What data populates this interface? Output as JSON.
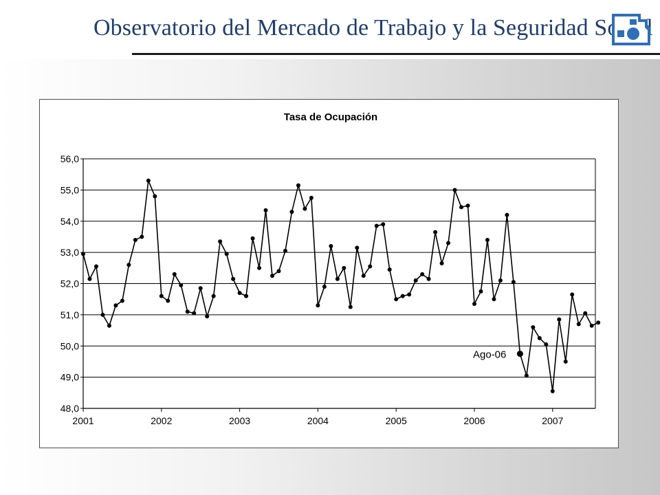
{
  "header": {
    "title": "Observatorio del Mercado de Trabajo y la Seguridad Social",
    "logo_icon": "gear-icon",
    "title_color": "#1f3e6e"
  },
  "chart_data": {
    "type": "line",
    "title": "Tasa de Ocupación",
    "xlabel": "",
    "ylabel": "",
    "ylim": [
      48.0,
      56.0
    ],
    "y_ticks": [
      "48,0",
      "49,0",
      "50,0",
      "51,0",
      "52,0",
      "53,0",
      "54,0",
      "55,0",
      "56,0"
    ],
    "x_ticks": [
      "2001",
      "2002",
      "2003",
      "2004",
      "2005",
      "2006",
      "2007"
    ],
    "grid": "horizontal",
    "legend": "none",
    "annotation": {
      "label": "Ago-06",
      "x": "2006-08"
    },
    "line_color": "#000000",
    "series": [
      {
        "x": [
          "2001-01",
          "2001-02",
          "2001-03",
          "2001-04",
          "2001-05",
          "2001-06",
          "2001-07",
          "2001-08",
          "2001-09",
          "2001-10",
          "2001-11",
          "2001-12",
          "2002-01",
          "2002-02",
          "2002-03",
          "2002-04",
          "2002-05",
          "2002-06",
          "2002-07",
          "2002-08",
          "2002-09",
          "2002-10",
          "2002-11",
          "2002-12",
          "2003-01",
          "2003-02",
          "2003-03",
          "2003-04",
          "2003-05",
          "2003-06",
          "2003-07",
          "2003-08",
          "2003-09",
          "2003-10",
          "2003-11",
          "2003-12",
          "2004-01",
          "2004-02",
          "2004-03",
          "2004-04",
          "2004-05",
          "2004-06",
          "2004-07",
          "2004-08",
          "2004-09",
          "2004-10",
          "2004-11",
          "2004-12",
          "2005-01",
          "2005-02",
          "2005-03",
          "2005-04",
          "2005-05",
          "2005-06",
          "2005-07",
          "2005-08",
          "2005-09",
          "2005-10",
          "2005-11",
          "2005-12",
          "2006-01",
          "2006-02",
          "2006-03",
          "2006-04",
          "2006-05",
          "2006-06",
          "2006-07",
          "2006-08",
          "2006-09",
          "2006-10",
          "2006-11",
          "2006-12",
          "2007-01",
          "2007-02",
          "2007-03",
          "2007-04",
          "2007-05",
          "2007-06",
          "2007-07",
          "2007-08"
        ],
        "values": [
          52.95,
          52.15,
          52.55,
          51.0,
          50.65,
          51.3,
          51.45,
          52.6,
          53.4,
          53.5,
          55.3,
          54.8,
          51.6,
          51.45,
          52.3,
          51.95,
          51.1,
          51.05,
          51.85,
          50.95,
          51.6,
          53.35,
          52.95,
          52.15,
          51.7,
          51.6,
          53.45,
          52.5,
          54.35,
          52.25,
          52.4,
          53.05,
          54.3,
          55.15,
          54.4,
          54.75,
          51.3,
          51.9,
          53.2,
          52.15,
          52.5,
          51.25,
          53.15,
          52.25,
          52.55,
          53.85,
          53.9,
          52.45,
          51.5,
          51.6,
          51.65,
          52.1,
          52.3,
          52.15,
          53.65,
          52.65,
          53.3,
          55.0,
          54.45,
          54.5,
          51.35,
          51.75,
          53.4,
          51.5,
          52.1,
          54.2,
          52.05,
          49.75,
          49.05,
          50.6,
          50.25,
          50.05,
          48.55,
          50.85,
          49.5,
          51.65,
          50.7,
          51.05,
          50.65,
          50.75
        ]
      }
    ]
  }
}
